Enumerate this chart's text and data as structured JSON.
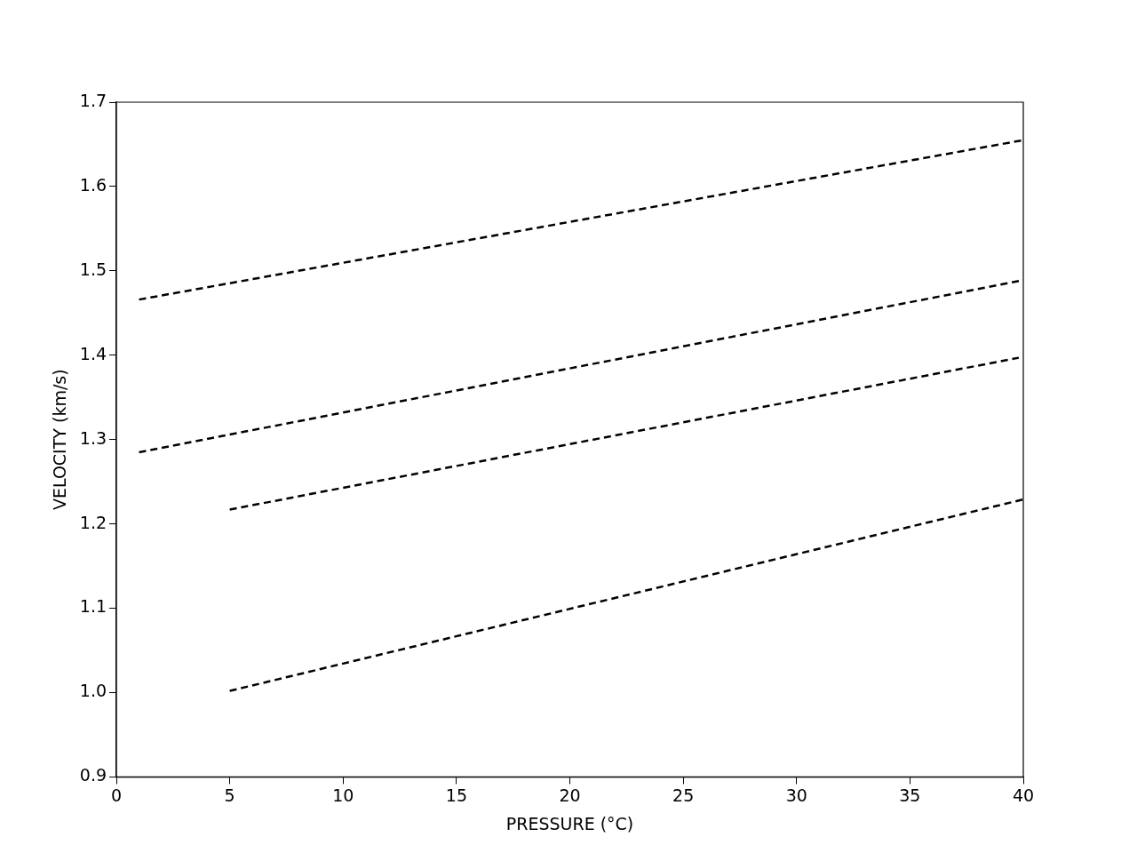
{
  "chart_data": {
    "type": "line",
    "xlabel": "PRESSURE (°C)",
    "ylabel": "VELOCITY (km/s)",
    "xlim": [
      0,
      40
    ],
    "xticks": [
      0,
      5,
      10,
      15,
      20,
      25,
      30,
      35,
      40
    ],
    "ylim": [
      0.9,
      1.7
    ],
    "yticks": [
      {
        "value": 0.9,
        "label": "0.9"
      },
      {
        "value": 1.0,
        "label": "1.0"
      },
      {
        "value": 1.1,
        "label": "1.1"
      },
      {
        "value": 1.2,
        "label": "1.2"
      },
      {
        "value": 1.3,
        "label": "1.3"
      },
      {
        "value": 1.4,
        "label": "1.4"
      },
      {
        "value": 1.5,
        "label": "1.5"
      },
      {
        "value": 1.6,
        "label": "1.6"
      },
      {
        "value": 1.7,
        "label": "1.7"
      }
    ],
    "grid": false,
    "legend": false,
    "marker": "none",
    "line_style": "dashed",
    "series": [
      {
        "color": "#000000",
        "x": [
          1,
          40
        ],
        "values": [
          1.466,
          1.655
        ]
      },
      {
        "color": "#000000",
        "x": [
          1,
          40
        ],
        "values": [
          1.285,
          1.489
        ]
      },
      {
        "color": "#000000",
        "x": [
          5,
          39.8
        ],
        "values": [
          1.217,
          1.397
        ]
      },
      {
        "color": "#000000",
        "x": [
          5,
          40
        ],
        "values": [
          1.002,
          1.229
        ]
      }
    ]
  }
}
